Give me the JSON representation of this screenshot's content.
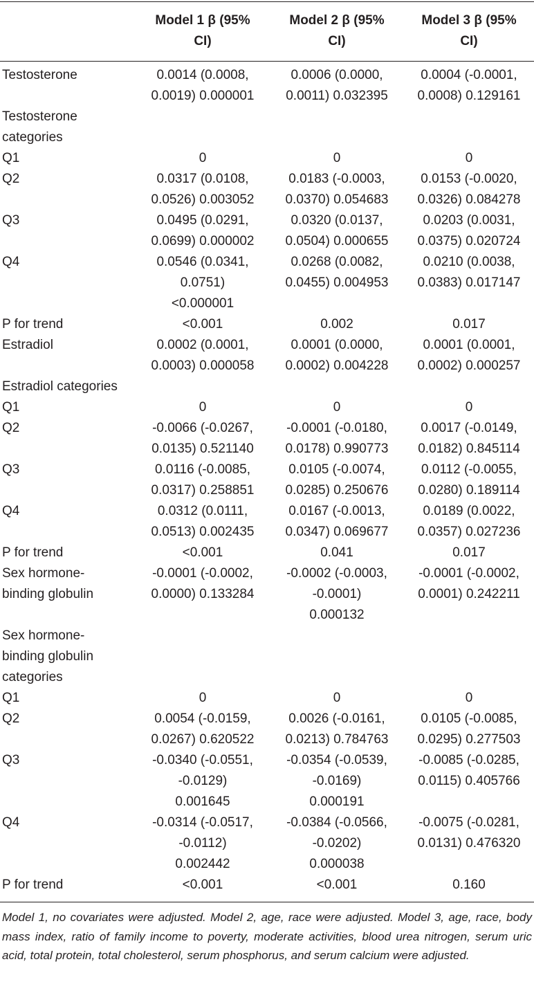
{
  "table": {
    "columns": [
      "Model 1 β (95% CI)",
      "Model 2 β (95% CI)",
      "Model 3 β (95% CI)"
    ],
    "rows": [
      {
        "label": "Testosterone",
        "cells": [
          "0.0014 (0.0008, 0.0019) 0.000001",
          "0.0006 (0.0000, 0.0011) 0.032395",
          "0.0004 (-0.0001, 0.0008) 0.129161"
        ]
      },
      {
        "label": "Testosterone categories"
      },
      {
        "label": "Q1",
        "cells": [
          "0",
          "0",
          "0"
        ]
      },
      {
        "label": "Q2",
        "cells": [
          "0.0317 (0.0108, 0.0526) 0.003052",
          "0.0183 (-0.0003, 0.0370) 0.054683",
          "0.0153 (-0.0020, 0.0326) 0.084278"
        ]
      },
      {
        "label": "Q3",
        "cells": [
          "0.0495 (0.0291, 0.0699) 0.000002",
          "0.0320 (0.0137, 0.0504) 0.000655",
          "0.0203 (0.0031, 0.0375) 0.020724"
        ]
      },
      {
        "label": "Q4",
        "cells": [
          "0.0546 (0.0341, 0.0751) <0.000001",
          "0.0268 (0.0082, 0.0455) 0.004953",
          "0.0210 (0.0038, 0.0383) 0.017147"
        ]
      },
      {
        "label": "P for trend",
        "cells": [
          "<0.001",
          "0.002",
          "0.017"
        ]
      },
      {
        "label": "Estradiol",
        "cells": [
          "0.0002 (0.0001, 0.0003) 0.000058",
          "0.0001 (0.0000, 0.0002) 0.004228",
          "0.0001 (0.0001, 0.0002) 0.000257"
        ]
      },
      {
        "label": "Estradiol categories"
      },
      {
        "label": "Q1",
        "cells": [
          "0",
          "0",
          "0"
        ]
      },
      {
        "label": "Q2",
        "cells": [
          "-0.0066 (-0.0267, 0.0135) 0.521140",
          "-0.0001 (-0.0180, 0.0178) 0.990773",
          "0.0017 (-0.0149, 0.0182) 0.845114"
        ]
      },
      {
        "label": "Q3",
        "cells": [
          "0.0116 (-0.0085, 0.0317) 0.258851",
          "0.0105 (-0.0074, 0.0285) 0.250676",
          "0.0112 (-0.0055, 0.0280) 0.189114"
        ]
      },
      {
        "label": "Q4",
        "cells": [
          "0.0312 (0.0111, 0.0513) 0.002435",
          "0.0167 (-0.0013, 0.0347) 0.069677",
          "0.0189 (0.0022, 0.0357) 0.027236"
        ]
      },
      {
        "label": "P for trend",
        "cells": [
          "<0.001",
          "0.041",
          "0.017"
        ]
      },
      {
        "label": "Sex hormone-binding globulin",
        "cells": [
          "-0.0001 (-0.0002, 0.0000) 0.133284",
          "-0.0002 (-0.0003, -0.0001) 0.000132",
          "-0.0001 (-0.0002, 0.0001) 0.242211"
        ]
      },
      {
        "label": "Sex hormone-binding globulin categories"
      },
      {
        "label": "Q1",
        "cells": [
          "0",
          "0",
          "0"
        ]
      },
      {
        "label": "Q2",
        "cells": [
          "0.0054 (-0.0159, 0.0267) 0.620522",
          "0.0026 (-0.0161, 0.0213) 0.784763",
          "0.0105 (-0.0085, 0.0295) 0.277503"
        ]
      },
      {
        "label": "Q3",
        "cells": [
          "-0.0340 (-0.0551, -0.0129) 0.001645",
          "-0.0354 (-0.0539, -0.0169) 0.000191",
          "-0.0085 (-0.0285, 0.0115) 0.405766"
        ]
      },
      {
        "label": "Q4",
        "cells": [
          "-0.0314 (-0.0517, -0.0112) 0.002442",
          "-0.0384 (-0.0566, -0.0202) 0.000038",
          "-0.0075 (-0.0281, 0.0131) 0.476320"
        ]
      },
      {
        "label": "P for trend",
        "cells": [
          "<0.001",
          "<0.001",
          "0.160"
        ]
      }
    ]
  },
  "footnote": "Model 1, no covariates were adjusted. Model 2, age, race were adjusted. Model 3, age, race, body mass index, ratio of family income to poverty, moderate activities, blood urea nitrogen, serum uric acid, total protein, total cholesterol, serum phosphorus, and serum calcium were adjusted."
}
